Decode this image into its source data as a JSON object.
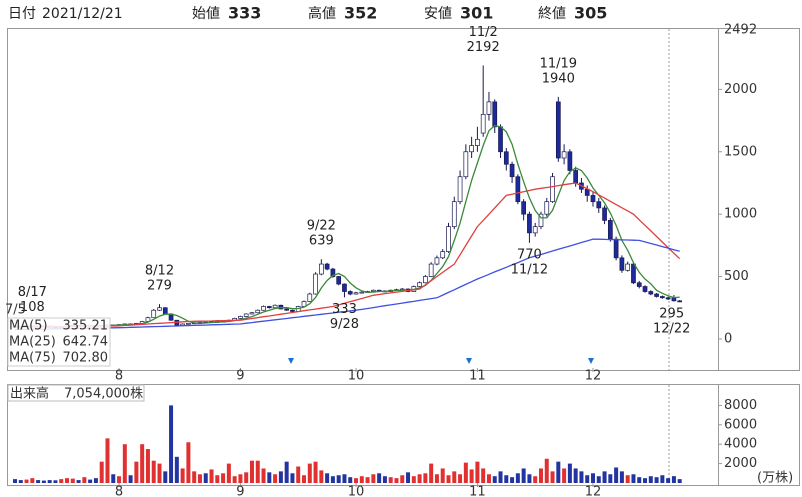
{
  "header": {
    "date_label": "日付",
    "date": "2021/12/21",
    "open_label": "始値",
    "high_label": "高値",
    "low_label": "安値",
    "close_label": "終値"
  },
  "chart_data": [
    {
      "type": "candlestick",
      "start_label": "7/5",
      "range_high": 2492,
      "ylim": [
        -233,
        2492
      ],
      "yticks": [
        0,
        500,
        1000,
        1500,
        2000
      ],
      "xticks": [
        {
          "value": 18,
          "label": "8"
        },
        {
          "value": 39,
          "label": "9"
        },
        {
          "value": 59,
          "label": "10"
        },
        {
          "value": 80,
          "label": "11"
        },
        {
          "value": 100,
          "label": "12"
        }
      ],
      "up_color": "#ffffff",
      "down_color": "#1c2a9c",
      "outline_color": "#1a1a50",
      "high_color": "#d83020",
      "open_color": "#000000",
      "low_color": "#1a8a1a",
      "open": [
        102,
        100,
        98,
        102,
        105,
        103,
        100,
        97,
        95,
        99,
        104,
        108,
        106,
        110,
        107,
        105,
        109,
        112,
        110,
        115,
        120,
        118,
        125,
        140,
        170,
        230,
        250,
        200,
        150,
        110,
        120,
        125,
        130,
        135,
        132,
        138,
        140,
        142,
        150,
        165,
        180,
        200,
        210,
        230,
        260,
        250,
        270,
        240,
        230,
        220,
        260,
        300,
        360,
        520,
        600,
        560,
        500,
        440,
        380,
        360,
        370,
        375,
        380,
        390,
        385,
        380,
        390,
        395,
        400,
        380,
        420,
        450,
        500,
        600,
        650,
        700,
        900,
        1100,
        1300,
        1500,
        1550,
        1650,
        1800,
        1900,
        1700,
        1500,
        1400,
        1300,
        1100,
        1000,
        850,
        900,
        1000,
        1100,
        1900,
        1450,
        1500,
        1350,
        1250,
        1200,
        1150,
        1100,
        1050,
        950,
        800,
        650,
        550,
        600,
        450,
        420,
        380,
        360,
        340,
        330,
        333,
        305
      ],
      "high": [
        106,
        103,
        104,
        108,
        107,
        105,
        102,
        99,
        101,
        106,
        111,
        110,
        113,
        112,
        109,
        111,
        115,
        114,
        118,
        123,
        124,
        128,
        145,
        178,
        240,
        279,
        255,
        205,
        152,
        124,
        128,
        133,
        138,
        137,
        140,
        144,
        146,
        154,
        170,
        186,
        205,
        216,
        236,
        268,
        265,
        276,
        274,
        245,
        234,
        265,
        308,
        370,
        535,
        639,
        610,
        570,
        505,
        445,
        390,
        378,
        382,
        386,
        396,
        395,
        390,
        396,
        402,
        408,
        405,
        428,
        460,
        512,
        615,
        668,
        720,
        930,
        1140,
        1350,
        1560,
        1620,
        1700,
        2192,
        1980,
        1920,
        1720,
        1530,
        1420,
        1320,
        1120,
        1020,
        930,
        1020,
        1130,
        1330,
        1940,
        1560,
        1520,
        1380,
        1290,
        1230,
        1180,
        1130,
        1070,
        970,
        820,
        670,
        620,
        610,
        465,
        430,
        390,
        368,
        348,
        338,
        352,
        312
      ],
      "low": [
        96,
        95,
        96,
        100,
        100,
        97,
        93,
        91,
        93,
        97,
        102,
        103,
        104,
        104,
        102,
        103,
        107,
        107,
        108,
        113,
        115,
        116,
        123,
        138,
        168,
        225,
        195,
        145,
        108,
        109,
        117,
        122,
        127,
        129,
        130,
        135,
        137,
        140,
        148,
        162,
        176,
        196,
        206,
        226,
        244,
        246,
        236,
        225,
        214,
        218,
        256,
        296,
        355,
        510,
        550,
        490,
        430,
        333,
        350,
        355,
        365,
        370,
        375,
        378,
        374,
        376,
        386,
        390,
        374,
        376,
        416,
        445,
        495,
        590,
        640,
        690,
        880,
        1080,
        1280,
        1450,
        1500,
        1620,
        1750,
        1650,
        1450,
        1350,
        1250,
        1080,
        950,
        770,
        820,
        880,
        980,
        1090,
        1420,
        1400,
        1320,
        1220,
        1170,
        1100,
        1060,
        1010,
        920,
        780,
        630,
        530,
        540,
        440,
        405,
        370,
        350,
        332,
        322,
        312,
        301,
        295
      ],
      "close": [
        100,
        98,
        102,
        105,
        103,
        100,
        97,
        95,
        99,
        104,
        108,
        106,
        110,
        107,
        105,
        109,
        112,
        110,
        115,
        120,
        118,
        125,
        140,
        170,
        230,
        250,
        200,
        150,
        110,
        120,
        125,
        130,
        135,
        132,
        138,
        140,
        142,
        150,
        165,
        180,
        200,
        210,
        230,
        260,
        250,
        270,
        240,
        230,
        220,
        260,
        300,
        360,
        520,
        600,
        560,
        500,
        440,
        380,
        360,
        370,
        375,
        380,
        390,
        385,
        380,
        390,
        395,
        400,
        380,
        420,
        450,
        500,
        600,
        650,
        700,
        900,
        1100,
        1300,
        1500,
        1550,
        1600,
        1800,
        1900,
        1700,
        1500,
        1400,
        1300,
        1100,
        1000,
        850,
        900,
        1000,
        1100,
        1300,
        1450,
        1500,
        1350,
        1250,
        1200,
        1150,
        1100,
        1050,
        950,
        800,
        650,
        550,
        600,
        450,
        420,
        380,
        360,
        340,
        330,
        320,
        305,
        300
      ],
      "annotations": [
        {
          "date": "8/12",
          "value": 279
        },
        {
          "date": "8/17",
          "value": 108
        },
        {
          "date": "9/22",
          "value": 639
        },
        {
          "date": "9/28",
          "value": 333
        },
        {
          "date": "11/2",
          "value": 2192
        },
        {
          "date": "11/12",
          "value": 770
        },
        {
          "date": "11/19",
          "value": 1940
        },
        {
          "date": "12/22",
          "value": 295
        }
      ],
      "series": [
        {
          "name": "MA(5)",
          "color": "#3a8a3a",
          "legend_value": "335.21",
          "values": [
            100,
            100,
            101,
            101,
            102,
            102,
            101,
            100,
            99,
            99,
            101,
            102,
            105,
            107,
            107,
            107,
            109,
            109,
            110,
            113,
            115,
            118,
            124,
            135,
            157,
            183,
            198,
            200,
            188,
            166,
            141,
            127,
            124,
            128,
            132,
            135,
            137,
            140,
            147,
            155,
            167,
            179,
            197,
            216,
            230,
            244,
            250,
            250,
            242,
            244,
            254,
            282,
            332,
            408,
            468,
            508,
            524,
            500,
            448,
            410,
            385,
            373,
            375,
            380,
            382,
            385,
            388,
            390,
            389,
            397,
            409,
            429,
            470,
            524,
            580,
            660,
            790,
            930,
            1100,
            1270,
            1410,
            1550,
            1670,
            1710,
            1700,
            1660,
            1560,
            1400,
            1260,
            1130,
            1030,
            970,
            970,
            1030,
            1150,
            1270,
            1340,
            1370,
            1350,
            1290,
            1210,
            1150,
            1090,
            1010,
            910,
            790,
            710,
            610,
            534,
            480,
            442,
            390,
            366,
            346,
            331,
            335.21
          ]
        },
        {
          "name": "MA(25)",
          "color": "#e04040",
          "legend_value": "642.74",
          "values": [
            95,
            96,
            96,
            97,
            97,
            98,
            98,
            99,
            99,
            100,
            101,
            101,
            102,
            102,
            103,
            103,
            104,
            104,
            105,
            108,
            111,
            114,
            117,
            120,
            123,
            125,
            128,
            131,
            134,
            137,
            140,
            141,
            142,
            143,
            144,
            146,
            147,
            148,
            149,
            150,
            157,
            164,
            171,
            178,
            184,
            191,
            198,
            205,
            212,
            219,
            226,
            233,
            239,
            246,
            253,
            260,
            273,
            286,
            299,
            311,
            324,
            337,
            350,
            356,
            363,
            369,
            375,
            381,
            388,
            394,
            400,
            433,
            467,
            500,
            533,
            567,
            600,
            675,
            750,
            825,
            900,
            950,
            1000,
            1050,
            1100,
            1150,
            1160,
            1170,
            1180,
            1190,
            1200,
            1207,
            1214,
            1221,
            1229,
            1236,
            1243,
            1250,
            1227,
            1203,
            1180,
            1154,
            1129,
            1103,
            1077,
            1051,
            1026,
            1000,
            955,
            911,
            866,
            821,
            776,
            732,
            687,
            642.74
          ]
        },
        {
          "name": "MA(75)",
          "color": "#4050e0",
          "legend_value": "702.80",
          "values": [
            75,
            76,
            77,
            78,
            78,
            79,
            80,
            81,
            82,
            82,
            83,
            84,
            85,
            86,
            87,
            87,
            88,
            89,
            90,
            91,
            93,
            94,
            96,
            97,
            99,
            100,
            101,
            103,
            104,
            106,
            107,
            109,
            110,
            111,
            113,
            114,
            116,
            117,
            119,
            120,
            126,
            131,
            137,
            142,
            148,
            153,
            159,
            164,
            170,
            175,
            181,
            186,
            192,
            197,
            203,
            208,
            214,
            219,
            225,
            230,
            237,
            244,
            251,
            259,
            266,
            273,
            280,
            287,
            294,
            301,
            309,
            316,
            323,
            330,
            351,
            373,
            394,
            416,
            437,
            459,
            480,
            499,
            518,
            537,
            556,
            574,
            593,
            612,
            631,
            650,
            664,
            677,
            691,
            705,
            718,
            732,
            745,
            759,
            773,
            786,
            800,
            799,
            798,
            796,
            795,
            794,
            793,
            791,
            790,
            778,
            765,
            753,
            740,
            728,
            715,
            702.8
          ]
        }
      ]
    },
    {
      "type": "volume",
      "title": "出来高",
      "latest": "7,054,000株",
      "unit_label": "(万株)",
      "up_color": "#e03030",
      "down_color": "#2234a0",
      "ylim": [
        0,
        10000
      ],
      "yticks": [
        2000,
        4000,
        6000,
        8000
      ],
      "xticks": [
        {
          "value": 18,
          "label": "8"
        },
        {
          "value": 39,
          "label": "9"
        },
        {
          "value": 59,
          "label": "10"
        },
        {
          "value": 80,
          "label": "11"
        },
        {
          "value": 100,
          "label": "12"
        }
      ],
      "values": [
        400,
        300,
        350,
        500,
        300,
        250,
        300,
        280,
        400,
        500,
        450,
        300,
        600,
        350,
        500,
        2200,
        4600,
        900,
        700,
        4000,
        800,
        2200,
        4000,
        3500,
        2300,
        2000,
        1200,
        8000,
        2700,
        1500,
        4200,
        1200,
        900,
        1000,
        1400,
        800,
        1000,
        2000,
        700,
        900,
        1100,
        2300,
        2300,
        1500,
        1100,
        900,
        1200,
        2200,
        1000,
        1700,
        800,
        2000,
        2200,
        1300,
        1000,
        700,
        800,
        900,
        600,
        500,
        700,
        600,
        900,
        1000,
        700,
        600,
        500,
        800,
        1100,
        700,
        900,
        1000,
        2000,
        900,
        1500,
        800,
        1200,
        900,
        2100,
        1400,
        2200,
        1500,
        900,
        700,
        1200,
        800,
        600,
        1000,
        1500,
        900,
        700,
        1500,
        2500,
        1200,
        2200,
        1500,
        2000,
        1500,
        1200,
        800,
        1000,
        700,
        1200,
        900,
        1600,
        1200,
        800,
        900,
        600,
        500,
        700,
        600,
        800,
        500,
        705.4,
        400
      ]
    }
  ]
}
